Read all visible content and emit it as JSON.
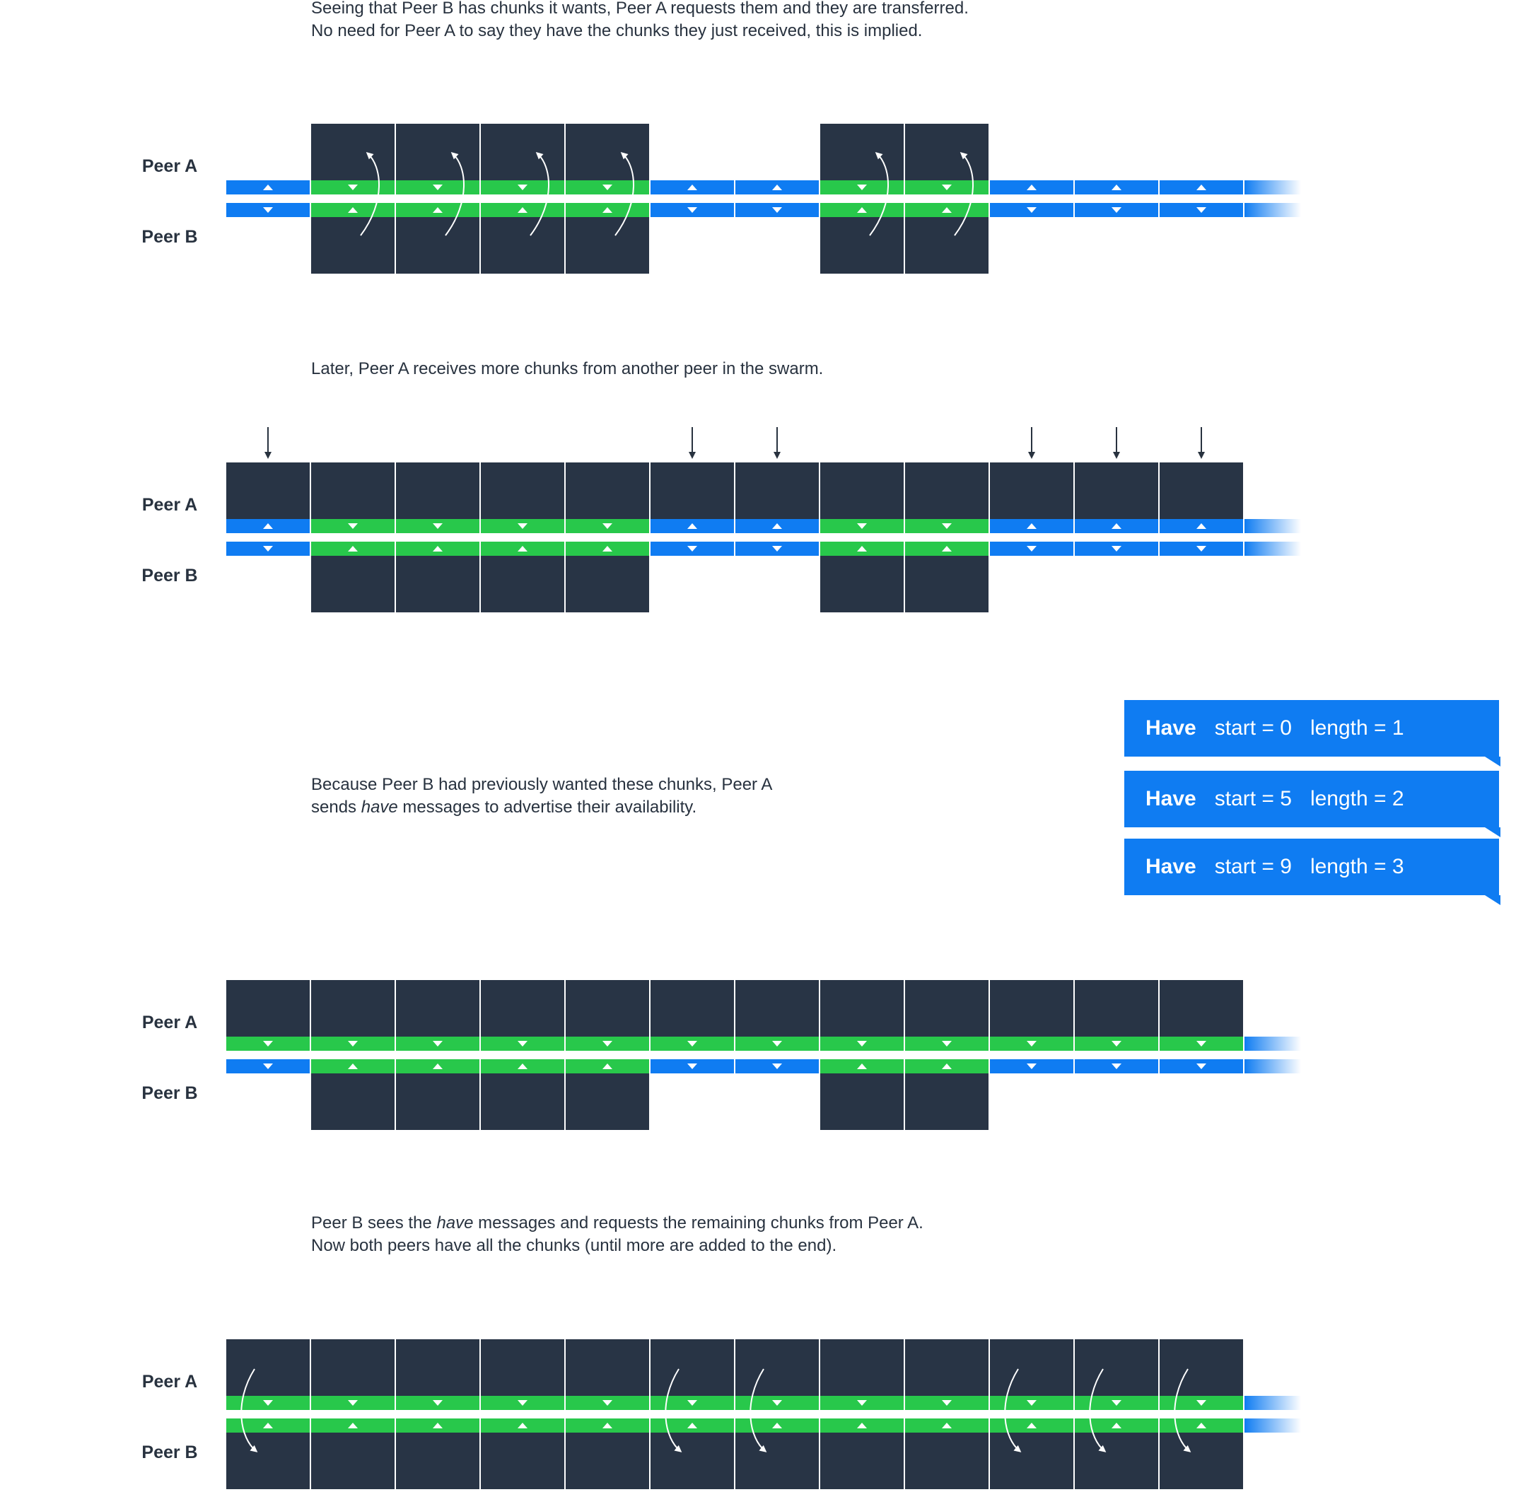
{
  "colors": {
    "chunk": "#283445",
    "wanted": "#0f7cf2",
    "have": "#28c84b",
    "arrow": "#28323f"
  },
  "captions": {
    "c1": [
      "Seeing that Peer B has chunks it wants, Peer A requests them and they are transferred.",
      "No need for Peer A to say they have the chunks they just received, this is implied."
    ],
    "c2": [
      "Later, Peer A receives more chunks from another peer in the swarm."
    ],
    "c3_l1": "Because Peer B had previously wanted these chunks, Peer A",
    "c3_l2_pre": "sends ",
    "c3_l2_em": "have",
    "c3_l2_post": " messages to advertise their availability.",
    "c4_l1_pre": "Peer B sees the ",
    "c4_l1_em": "have",
    "c4_l1_post": " messages and requests the remaining chunks from Peer A.",
    "c4_l2": "Now both peers have all the chunks (until more are added to the end)."
  },
  "labels": {
    "peer_a": "Peer A",
    "peer_b": "Peer B"
  },
  "have_messages": [
    {
      "keyword": "Have",
      "start": "start = 0",
      "length": "length = 1"
    },
    {
      "keyword": "Have",
      "start": "start = 5",
      "length": "length = 2"
    },
    {
      "keyword": "Have",
      "start": "start = 9",
      "length": "length = 3"
    }
  ],
  "panels": [
    {
      "a": [
        0,
        1,
        1,
        1,
        1,
        0,
        0,
        1,
        1,
        0,
        0,
        0
      ],
      "b": [
        0,
        1,
        1,
        1,
        1,
        0,
        0,
        1,
        1,
        0,
        0,
        0
      ],
      "barA": [
        0,
        1,
        1,
        1,
        1,
        0,
        0,
        1,
        1,
        0,
        0,
        0
      ],
      "barB": [
        0,
        1,
        1,
        1,
        1,
        0,
        0,
        1,
        1,
        0,
        0,
        0
      ],
      "transferUp": [
        1,
        2,
        3,
        4,
        7,
        8
      ],
      "transferDown": [],
      "incoming": []
    },
    {
      "a": [
        1,
        1,
        1,
        1,
        1,
        1,
        1,
        1,
        1,
        1,
        1,
        1
      ],
      "b": [
        0,
        1,
        1,
        1,
        1,
        0,
        0,
        1,
        1,
        0,
        0,
        0
      ],
      "barA": [
        0,
        1,
        1,
        1,
        1,
        0,
        0,
        1,
        1,
        0,
        0,
        0
      ],
      "barB": [
        0,
        1,
        1,
        1,
        1,
        0,
        0,
        1,
        1,
        0,
        0,
        0
      ],
      "transferUp": [],
      "transferDown": [],
      "incoming": [
        0,
        5,
        6,
        9,
        10,
        11
      ]
    },
    {
      "a": [
        1,
        1,
        1,
        1,
        1,
        1,
        1,
        1,
        1,
        1,
        1,
        1
      ],
      "b": [
        0,
        1,
        1,
        1,
        1,
        0,
        0,
        1,
        1,
        0,
        0,
        0
      ],
      "barA": [
        1,
        1,
        1,
        1,
        1,
        1,
        1,
        1,
        1,
        1,
        1,
        1
      ],
      "barB": [
        0,
        1,
        1,
        1,
        1,
        0,
        0,
        1,
        1,
        0,
        0,
        0
      ],
      "transferUp": [],
      "transferDown": [],
      "incoming": []
    },
    {
      "a": [
        1,
        1,
        1,
        1,
        1,
        1,
        1,
        1,
        1,
        1,
        1,
        1
      ],
      "b": [
        1,
        1,
        1,
        1,
        1,
        1,
        1,
        1,
        1,
        1,
        1,
        1
      ],
      "barA": [
        1,
        1,
        1,
        1,
        1,
        1,
        1,
        1,
        1,
        1,
        1,
        1
      ],
      "barB": [
        1,
        1,
        1,
        1,
        1,
        1,
        1,
        1,
        1,
        1,
        1,
        1
      ],
      "transferUp": [],
      "transferDown": [
        0,
        5,
        6,
        9,
        10,
        11
      ],
      "incoming": []
    }
  ]
}
